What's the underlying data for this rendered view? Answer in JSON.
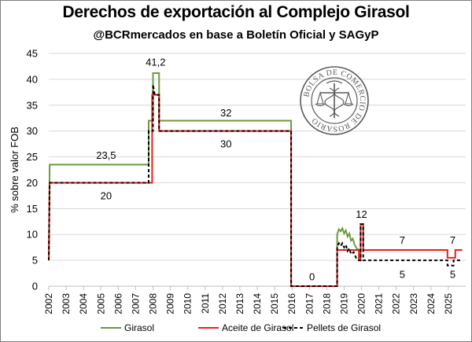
{
  "chart_data": {
    "type": "line",
    "title": "Derechos de exportación al Complejo Girasol",
    "subtitle": "@BCRmercados en base a Boletín Oficial y SAGyP",
    "ylabel": "% sobre valor FOB",
    "ylim": [
      0,
      45
    ],
    "yticks": [
      0,
      5,
      10,
      15,
      20,
      25,
      30,
      35,
      40,
      45
    ],
    "xlim": [
      2002,
      2026
    ],
    "xticks": [
      "2002",
      "2003",
      "2004",
      "2005",
      "2006",
      "2007",
      "2008",
      "2009",
      "2010",
      "2011",
      "2012",
      "2013",
      "2014",
      "2015",
      "2016",
      "2017",
      "2018",
      "2019",
      "2020",
      "2021",
      "2022",
      "2023",
      "2024",
      "2025"
    ],
    "grid": "horizontal",
    "legend_position": "bottom",
    "series": [
      {
        "name": "Girasol",
        "color": "#6e9a3a",
        "dash": "solid",
        "points": [
          [
            2002.0,
            5
          ],
          [
            2002.05,
            23.5
          ],
          [
            2007.75,
            23.5
          ],
          [
            2007.75,
            32
          ],
          [
            2008.0,
            32
          ],
          [
            2008.0,
            41.2
          ],
          [
            2008.35,
            41.2
          ],
          [
            2008.35,
            32
          ],
          [
            2015.95,
            32
          ],
          [
            2015.95,
            0
          ],
          [
            2018.6,
            0
          ],
          [
            2018.6,
            10
          ],
          [
            2018.7,
            11
          ],
          [
            2018.8,
            10.6
          ],
          [
            2018.9,
            11.2
          ],
          [
            2019.0,
            10.2
          ],
          [
            2019.1,
            10.8
          ],
          [
            2019.2,
            9.6
          ],
          [
            2019.3,
            10.2
          ],
          [
            2019.4,
            8.8
          ],
          [
            2019.5,
            9.2
          ],
          [
            2019.6,
            8.0
          ],
          [
            2019.75,
            7.2
          ],
          [
            2019.9,
            7.0
          ],
          [
            2019.95,
            7.0
          ]
        ]
      },
      {
        "name": "Aceite de Girasol",
        "color": "#e8201e",
        "dash": "solid",
        "points": [
          [
            2002.0,
            5
          ],
          [
            2002.05,
            20
          ],
          [
            2007.95,
            20
          ],
          [
            2007.95,
            37
          ],
          [
            2008.35,
            37
          ],
          [
            2008.35,
            30
          ],
          [
            2015.95,
            30
          ],
          [
            2015.95,
            0
          ],
          [
            2018.6,
            0
          ],
          [
            2018.6,
            7
          ],
          [
            2019.85,
            7
          ],
          [
            2019.85,
            5
          ],
          [
            2019.95,
            5
          ],
          [
            2019.95,
            12
          ],
          [
            2020.1,
            12
          ],
          [
            2020.1,
            7
          ],
          [
            2024.95,
            7
          ],
          [
            2024.95,
            5.5
          ],
          [
            2025.4,
            5.5
          ],
          [
            2025.4,
            7
          ],
          [
            2025.8,
            7
          ]
        ]
      },
      {
        "name": "Pellets de Girasol",
        "color": "#000000",
        "dash": "4,3",
        "points": [
          [
            2002.0,
            5
          ],
          [
            2002.05,
            20
          ],
          [
            2007.75,
            20
          ],
          [
            2007.75,
            30
          ],
          [
            2008.0,
            30
          ],
          [
            2008.0,
            39
          ],
          [
            2008.1,
            37
          ],
          [
            2008.35,
            37
          ],
          [
            2008.35,
            30
          ],
          [
            2015.95,
            30
          ],
          [
            2015.95,
            0
          ],
          [
            2018.6,
            0
          ],
          [
            2018.6,
            7.5
          ],
          [
            2018.7,
            8.3
          ],
          [
            2018.8,
            7.8
          ],
          [
            2018.9,
            8.3
          ],
          [
            2019.0,
            7.5
          ],
          [
            2019.1,
            8.0
          ],
          [
            2019.2,
            6.8
          ],
          [
            2019.3,
            7.3
          ],
          [
            2019.4,
            6.2
          ],
          [
            2019.55,
            6.6
          ],
          [
            2019.7,
            5.4
          ],
          [
            2019.85,
            5
          ],
          [
            2019.95,
            5
          ],
          [
            2019.95,
            12
          ],
          [
            2020.1,
            12
          ],
          [
            2020.1,
            5
          ],
          [
            2024.95,
            5
          ],
          [
            2024.95,
            4
          ],
          [
            2025.3,
            4
          ],
          [
            2025.3,
            5
          ],
          [
            2025.8,
            5
          ]
        ]
      }
    ],
    "annotations": [
      {
        "text": "41,2",
        "x": 2008.15,
        "y": 43.3
      },
      {
        "text": "32",
        "x": 2012.2,
        "y": 33.5
      },
      {
        "text": "30",
        "x": 2012.2,
        "y": 27.5
      },
      {
        "text": "23,5",
        "x": 2005.3,
        "y": 25.3
      },
      {
        "text": "20",
        "x": 2005.3,
        "y": 17.5
      },
      {
        "text": "0",
        "x": 2017.15,
        "y": 1.8
      },
      {
        "text": "12",
        "x": 2020.0,
        "y": 13.9
      },
      {
        "text": "7",
        "x": 2022.35,
        "y": 8.9
      },
      {
        "text": "5",
        "x": 2022.35,
        "y": 2.3
      },
      {
        "text": "7",
        "x": 2025.25,
        "y": 8.9
      },
      {
        "text": "5",
        "x": 2025.25,
        "y": 2.3
      }
    ]
  },
  "seal": {
    "ring_text": "BOLSA DE COMERCIO DE ROSARIO",
    "color": "#5a5a5a"
  }
}
